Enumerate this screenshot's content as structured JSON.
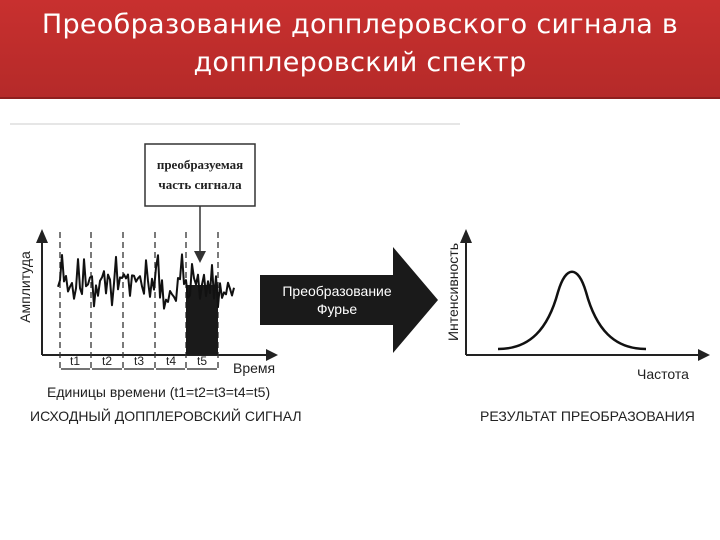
{
  "title": "Преобразование допплеровского сигнала в допплеровский спектр",
  "diagram": {
    "callout": {
      "line1": "преобразуемая",
      "line2": "часть сигнала"
    },
    "left": {
      "ylabel": "Амплитуда",
      "xlabel": "Время",
      "intervals": [
        "t1",
        "t2",
        "t3",
        "t4",
        "t5"
      ],
      "units_text": "Единицы времени (t1=t2=t3=t4=t5)",
      "caption": "ИСХОДНЫЙ ДОППЛЕРОВСКИЙ СИГНАЛ"
    },
    "arrow": {
      "line1": "Преобразование",
      "line2": "Фурье"
    },
    "right": {
      "ylabel": "Интенсивность",
      "xlabel": "Частота",
      "caption": "РЕЗУЛЬТАТ ПРЕОБРАЗОВАНИЯ"
    }
  },
  "colors": {
    "header": "#c0302f",
    "ink": "#222222"
  }
}
